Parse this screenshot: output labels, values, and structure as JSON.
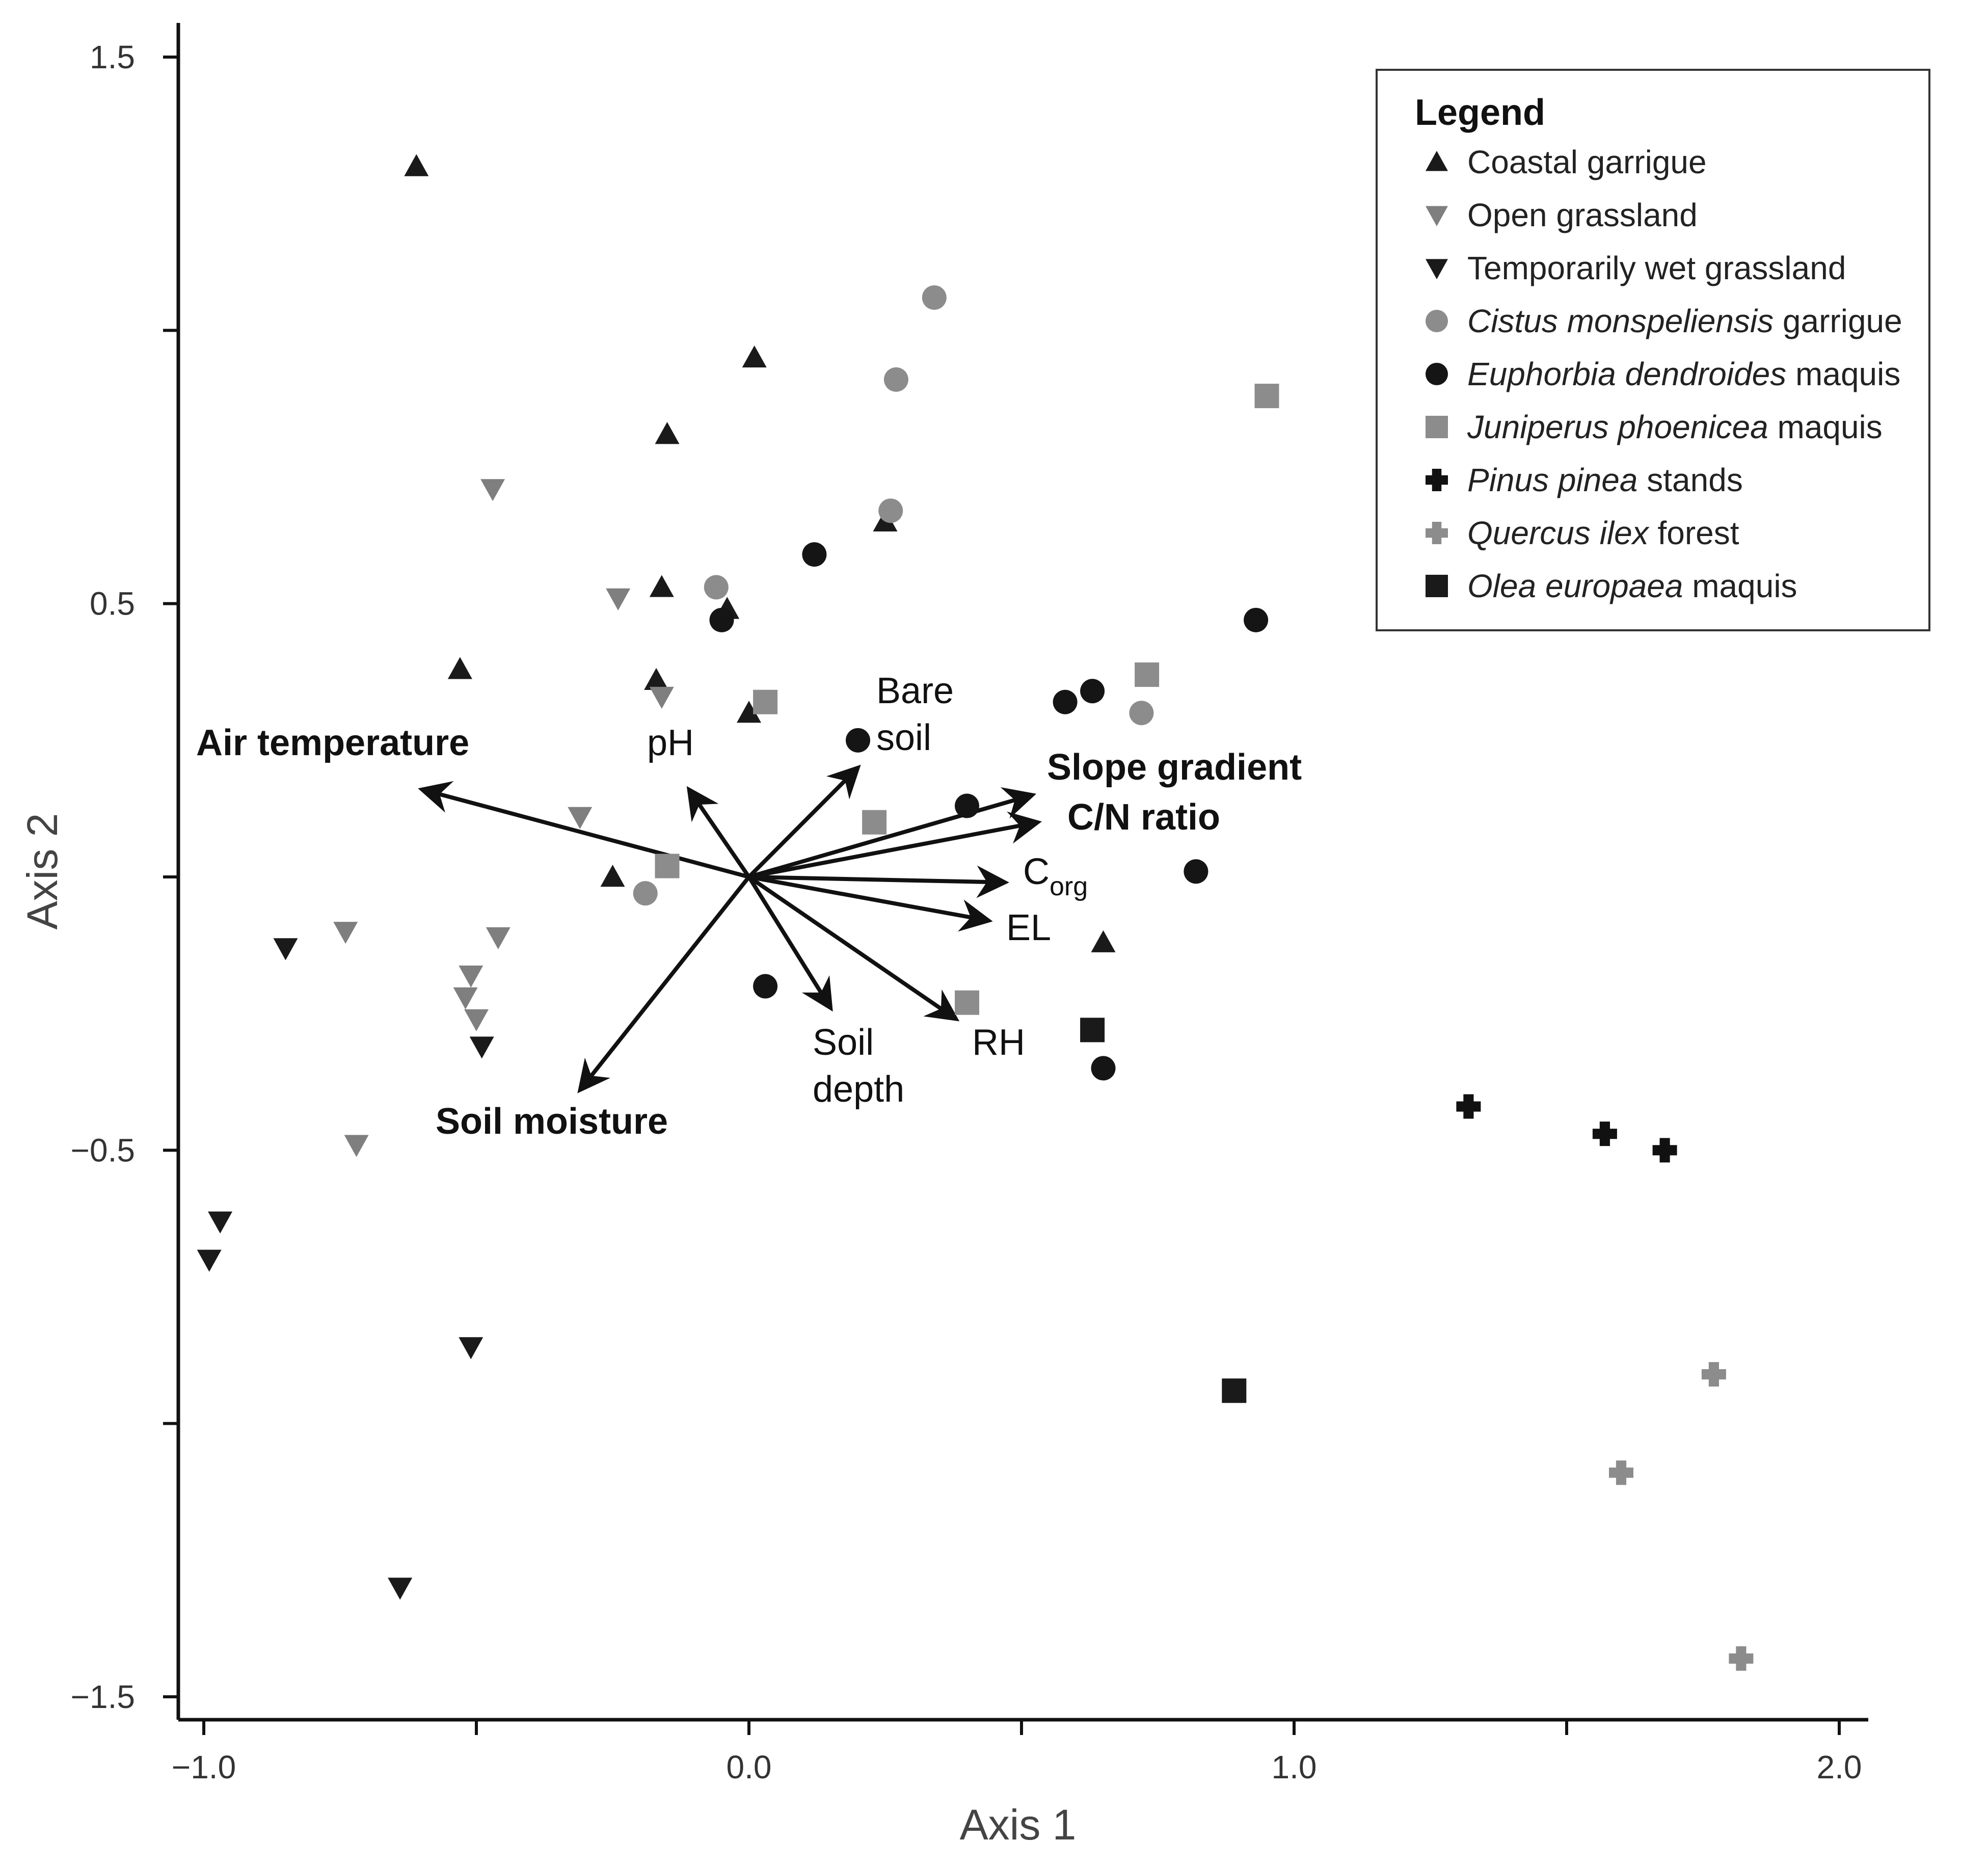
{
  "chart_data": {
    "type": "scatter",
    "title": "",
    "xlabel": "Axis 1",
    "ylabel": "Axis 2",
    "xlim": [
      -1.05,
      2.05
    ],
    "ylim": [
      -1.55,
      1.5
    ],
    "xticks": [
      -1.0,
      -0.5,
      0.0,
      0.5,
      1.0,
      1.5,
      2.0
    ],
    "xtick_labels": [
      "−1.0",
      "",
      "0.0",
      "",
      "1.0",
      "",
      "2.0"
    ],
    "yticks": [
      -1.5,
      -1.0,
      -0.5,
      0.0,
      0.5,
      1.0,
      1.5
    ],
    "ytick_labels": [
      "−1.5",
      "",
      "−0.5",
      "",
      "0.5",
      "",
      "1.5"
    ],
    "legend": {
      "title": "Legend",
      "position": "top-right"
    },
    "series": [
      {
        "name": "Coastal garrigue",
        "italic": "",
        "rest": "Coastal garrigue",
        "marker": "triangle-up",
        "color": "#1a1a1a",
        "points": [
          [
            -0.61,
            1.3
          ],
          [
            0.01,
            0.95
          ],
          [
            -0.15,
            0.81
          ],
          [
            0.25,
            0.65
          ],
          [
            -0.16,
            0.53
          ],
          [
            -0.04,
            0.49
          ],
          [
            -0.53,
            0.38
          ],
          [
            -0.17,
            0.36
          ],
          [
            0.0,
            0.3
          ],
          [
            -0.25,
            0.0
          ],
          [
            0.65,
            -0.12
          ]
        ]
      },
      {
        "name": "Open grassland",
        "italic": "",
        "rest": "Open grassland",
        "marker": "triangle-down",
        "color": "#7f7f7f",
        "points": [
          [
            -0.47,
            0.71
          ],
          [
            -0.24,
            0.51
          ],
          [
            -0.16,
            0.33
          ],
          [
            -0.31,
            0.11
          ],
          [
            -0.74,
            -0.1
          ],
          [
            -0.46,
            -0.11
          ],
          [
            -0.51,
            -0.18
          ],
          [
            -0.52,
            -0.22
          ],
          [
            -0.5,
            -0.26
          ],
          [
            -0.72,
            -0.49
          ]
        ]
      },
      {
        "name": "Temporarily wet grassland",
        "italic": "",
        "rest": "Temporarily wet grassland",
        "marker": "triangle-down",
        "color": "#1a1a1a",
        "points": [
          [
            -0.85,
            -0.13
          ],
          [
            -0.49,
            -0.31
          ],
          [
            -0.97,
            -0.63
          ],
          [
            -0.99,
            -0.7
          ],
          [
            -0.51,
            -0.86
          ],
          [
            -0.64,
            -1.3
          ]
        ]
      },
      {
        "name": "Cistus monspeliensis garrigue",
        "italic": "Cistus monspeliensis",
        "rest": " garrigue",
        "marker": "circle",
        "color": "#8c8c8c",
        "points": [
          [
            0.34,
            1.06
          ],
          [
            0.27,
            0.91
          ],
          [
            0.26,
            0.67
          ],
          [
            -0.06,
            0.53
          ],
          [
            0.72,
            0.3
          ],
          [
            -0.19,
            -0.03
          ]
        ]
      },
      {
        "name": "Euphorbia dendroides maquis",
        "italic": "Euphorbia dendroides",
        "rest": " maquis",
        "marker": "circle",
        "color": "#151515",
        "points": [
          [
            0.12,
            0.59
          ],
          [
            -0.05,
            0.47
          ],
          [
            0.93,
            0.47
          ],
          [
            0.63,
            0.34
          ],
          [
            0.58,
            0.32
          ],
          [
            0.2,
            0.25
          ],
          [
            0.4,
            0.13
          ],
          [
            0.82,
            0.01
          ],
          [
            0.03,
            -0.2
          ],
          [
            0.65,
            -0.35
          ]
        ]
      },
      {
        "name": "Juniperus phoenicea maquis",
        "italic": "Juniperus phoenicea",
        "rest": " maquis",
        "marker": "square",
        "color": "#8c8c8c",
        "points": [
          [
            0.95,
            0.88
          ],
          [
            0.73,
            0.37
          ],
          [
            0.03,
            0.32
          ],
          [
            0.23,
            0.1
          ],
          [
            -0.15,
            0.02
          ],
          [
            0.4,
            -0.23
          ]
        ]
      },
      {
        "name": "Pinus pinea stands",
        "italic": "Pinus pinea",
        "rest": " stands",
        "marker": "plus",
        "color": "#111111",
        "points": [
          [
            1.32,
            -0.42
          ],
          [
            1.57,
            -0.47
          ],
          [
            1.68,
            -0.5
          ]
        ]
      },
      {
        "name": "Quercus ilex forest",
        "italic": "Quercus ilex",
        "rest": " forest",
        "marker": "plus",
        "color": "#8c8c8c",
        "points": [
          [
            1.77,
            -0.91
          ],
          [
            1.6,
            -1.09
          ],
          [
            1.82,
            -1.43
          ]
        ]
      },
      {
        "name": "Olea europaea maquis",
        "italic": "Olea europaea",
        "rest": " maquis",
        "marker": "square",
        "color": "#1a1a1a",
        "points": [
          [
            0.63,
            -0.28
          ],
          [
            0.89,
            -0.94
          ]
        ]
      }
    ],
    "vectors": [
      {
        "label": "Air temperature",
        "bold": true,
        "end": [
          -0.6,
          0.16
        ]
      },
      {
        "label": "pH",
        "bold": false,
        "end": [
          -0.11,
          0.16
        ]
      },
      {
        "label": "Bare soil",
        "bold": false,
        "end": [
          0.2,
          0.2
        ]
      },
      {
        "label": "Slope gradient",
        "bold": true,
        "end": [
          0.52,
          0.15
        ]
      },
      {
        "label": "C/N ratio",
        "bold": true,
        "end": [
          0.53,
          0.1
        ]
      },
      {
        "label": "C",
        "sub": "org",
        "bold": false,
        "end": [
          0.47,
          -0.01
        ]
      },
      {
        "label": "EL",
        "bold": false,
        "end": [
          0.44,
          -0.08
        ]
      },
      {
        "label": "RH",
        "bold": false,
        "end": [
          0.38,
          -0.26
        ]
      },
      {
        "label": "Soil depth",
        "bold": false,
        "end": [
          0.15,
          -0.24
        ]
      },
      {
        "label": "Soil moisture",
        "bold": true,
        "end": [
          -0.31,
          -0.39
        ]
      }
    ]
  }
}
